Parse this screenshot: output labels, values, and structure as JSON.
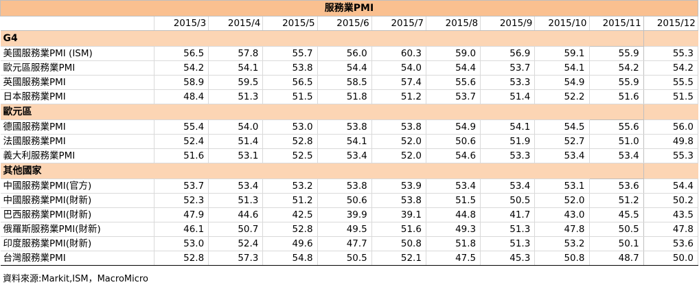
{
  "title": "服務業PMI",
  "headers": [
    "",
    "2015/3",
    "2015/4",
    "2015/5",
    "2015/6",
    "2015/7",
    "2015/8",
    "2015/9",
    "2015/10",
    "2015/11",
    "2015/12"
  ],
  "sections": [
    {
      "name": "G4",
      "rows": [
        {
          "label": "美國服務業PMI (ISM)",
          "values": [
            "56.5",
            "57.8",
            "55.7",
            "56.0",
            "60.3",
            "59.0",
            "56.9",
            "59.1",
            "55.9",
            "55.3"
          ]
        },
        {
          "label": "歐元區服務業PMI",
          "values": [
            "54.2",
            "54.1",
            "53.8",
            "54.4",
            "54.0",
            "54.4",
            "53.7",
            "54.1",
            "54.2",
            "54.2"
          ]
        },
        {
          "label": "英國服務業PMI",
          "values": [
            "58.9",
            "59.5",
            "56.5",
            "58.5",
            "57.4",
            "55.6",
            "53.3",
            "54.9",
            "55.9",
            "55.5"
          ]
        },
        {
          "label": "日本服務業PMI",
          "values": [
            "48.4",
            "51.3",
            "51.5",
            "51.8",
            "51.2",
            "53.7",
            "51.4",
            "52.2",
            "51.6",
            "51.5"
          ]
        }
      ]
    },
    {
      "name": "歐元區",
      "rows": [
        {
          "label": "德國服務業PMI",
          "values": [
            "55.4",
            "54.0",
            "53.0",
            "53.8",
            "53.8",
            "54.9",
            "54.1",
            "54.5",
            "55.6",
            "56.0"
          ]
        },
        {
          "label": "法國服務業PMI",
          "values": [
            "52.4",
            "51.4",
            "52.8",
            "54.1",
            "52.0",
            "50.6",
            "51.9",
            "52.7",
            "51.0",
            "49.8"
          ]
        },
        {
          "label": "義大利服務業PMI",
          "values": [
            "51.6",
            "53.1",
            "52.5",
            "53.4",
            "52.0",
            "54.6",
            "53.3",
            "53.4",
            "53.4",
            "55.3"
          ]
        }
      ]
    },
    {
      "name": "其他國家",
      "rows": [
        {
          "label": "中國服務業PMI(官方)",
          "values": [
            "53.7",
            "53.4",
            "53.2",
            "53.8",
            "53.9",
            "53.4",
            "53.4",
            "53.1",
            "53.6",
            "54.4"
          ]
        },
        {
          "label": "中國服務業PMI(財新)",
          "values": [
            "52.3",
            "51.3",
            "51.2",
            "50.6",
            "53.8",
            "51.5",
            "50.5",
            "52.0",
            "51.2",
            "50.2"
          ]
        },
        {
          "label": "巴西服務業PMI(財新)",
          "values": [
            "47.9",
            "44.6",
            "42.5",
            "39.9",
            "39.1",
            "44.8",
            "41.7",
            "43.0",
            "45.5",
            "43.5"
          ]
        },
        {
          "label": "俄羅斯服務業PMI(財新)",
          "values": [
            "46.1",
            "50.7",
            "52.8",
            "49.5",
            "51.6",
            "49.3",
            "51.3",
            "47.8",
            "50.5",
            "47.8"
          ]
        },
        {
          "label": "印度服務業PMI(財新)",
          "values": [
            "53.0",
            "52.4",
            "49.6",
            "47.7",
            "50.8",
            "51.8",
            "51.3",
            "53.2",
            "50.1",
            "53.6"
          ]
        },
        {
          "label": "台灣服務業PMI",
          "values": [
            "52.8",
            "57.3",
            "54.8",
            "50.5",
            "52.1",
            "47.5",
            "45.3",
            "50.8",
            "48.7",
            "50.0"
          ]
        }
      ]
    }
  ],
  "source": "資料來源:Markit,ISM，MacroMicro"
}
